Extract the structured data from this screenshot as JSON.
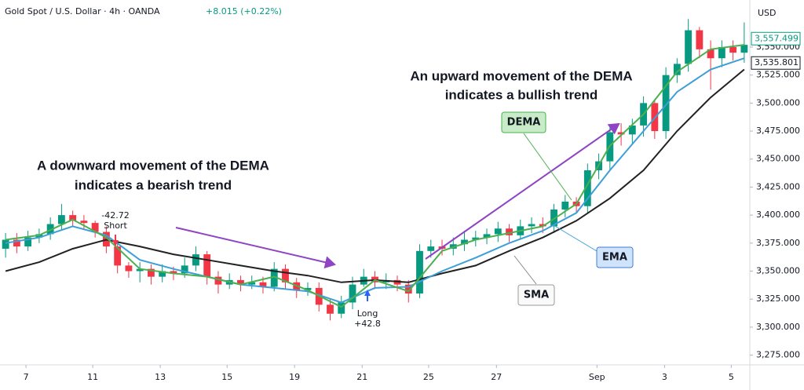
{
  "chart_data": {
    "type": "candlestick",
    "title": "Gold Spot / U.S. Dollar · 4h · OANDA",
    "change": "+8.015 (+0.22%)",
    "currency": "USD",
    "x": [
      0,
      1,
      2,
      3,
      4,
      5,
      6,
      7,
      8,
      9,
      10,
      11,
      12,
      13,
      14,
      15,
      16,
      17,
      18,
      19,
      20,
      21,
      22,
      23,
      24,
      25,
      26,
      27,
      28,
      29,
      30,
      31,
      32,
      33,
      34,
      35,
      36,
      37,
      38,
      39,
      40,
      41,
      42,
      43,
      44,
      45,
      46,
      47,
      48,
      49,
      50,
      51,
      52,
      53,
      54,
      55,
      56,
      57,
      58,
      59,
      60,
      61,
      62,
      63,
      64,
      65,
      66
    ],
    "open": [
      3370,
      3378,
      3372,
      3380,
      3383,
      3392,
      3400,
      3395,
      3393,
      3385,
      3372,
      3355,
      3350,
      3352,
      3345,
      3350,
      3348,
      3355,
      3365,
      3345,
      3338,
      3342,
      3338,
      3340,
      3336,
      3352,
      3340,
      3333,
      3335,
      3320,
      3312,
      3322,
      3338,
      3345,
      3340,
      3342,
      3338,
      3330,
      3368,
      3372,
      3370,
      3374,
      3378,
      3380,
      3383,
      3388,
      3382,
      3390,
      3392,
      3390,
      3405,
      3412,
      3408,
      3440,
      3448,
      3474,
      3472,
      3480,
      3500,
      3475,
      3525,
      3535,
      3565,
      3548,
      3540,
      3550,
      3545
    ],
    "high": [
      3384,
      3384,
      3386,
      3388,
      3398,
      3410,
      3404,
      3400,
      3395,
      3390,
      3375,
      3358,
      3358,
      3356,
      3356,
      3354,
      3362,
      3372,
      3368,
      3350,
      3348,
      3346,
      3346,
      3345,
      3358,
      3356,
      3344,
      3340,
      3340,
      3325,
      3328,
      3345,
      3352,
      3350,
      3348,
      3346,
      3342,
      3374,
      3378,
      3378,
      3380,
      3386,
      3386,
      3388,
      3394,
      3392,
      3396,
      3398,
      3398,
      3410,
      3418,
      3416,
      3446,
      3455,
      3480,
      3482,
      3486,
      3506,
      3502,
      3532,
      3540,
      3575,
      3568,
      3556,
      3556,
      3556,
      3572
    ],
    "low": [
      3362,
      3366,
      3368,
      3375,
      3378,
      3386,
      3390,
      3388,
      3380,
      3366,
      3348,
      3344,
      3340,
      3338,
      3340,
      3342,
      3344,
      3350,
      3338,
      3330,
      3334,
      3332,
      3334,
      3330,
      3332,
      3334,
      3326,
      3328,
      3314,
      3306,
      3308,
      3316,
      3336,
      3334,
      3334,
      3332,
      3322,
      3326,
      3362,
      3364,
      3364,
      3368,
      3372,
      3374,
      3376,
      3376,
      3378,
      3384,
      3384,
      3384,
      3398,
      3402,
      3402,
      3432,
      3440,
      3462,
      3464,
      3470,
      3468,
      3468,
      3518,
      3528,
      3540,
      3512,
      3532,
      3538,
      3536
    ],
    "close": [
      3378,
      3372,
      3380,
      3383,
      3392,
      3400,
      3395,
      3393,
      3385,
      3372,
      3355,
      3350,
      3352,
      3345,
      3350,
      3348,
      3355,
      3365,
      3345,
      3338,
      3342,
      3338,
      3340,
      3336,
      3352,
      3340,
      3333,
      3335,
      3320,
      3312,
      3322,
      3338,
      3345,
      3340,
      3342,
      3338,
      3330,
      3368,
      3372,
      3370,
      3374,
      3378,
      3380,
      3383,
      3388,
      3382,
      3390,
      3392,
      3390,
      3405,
      3412,
      3408,
      3440,
      3448,
      3474,
      3472,
      3480,
      3500,
      3475,
      3525,
      3535,
      3565,
      3548,
      3540,
      3550,
      3545,
      3552
    ],
    "up_color": "#089981",
    "down_color": "#f23645",
    "series": [
      {
        "name": "SMA",
        "color": "#222222",
        "x": [
          0,
          3,
          6,
          9,
          12,
          15,
          18,
          21,
          24,
          27,
          30,
          33,
          36,
          39,
          42,
          45,
          48,
          51,
          54,
          57,
          60,
          63,
          66
        ],
        "values": [
          3350,
          3358,
          3370,
          3378,
          3372,
          3365,
          3360,
          3355,
          3350,
          3346,
          3340,
          3342,
          3340,
          3348,
          3355,
          3368,
          3380,
          3395,
          3415,
          3440,
          3475,
          3505,
          3530
        ]
      },
      {
        "name": "EMA",
        "color": "#3d9fd8",
        "x": [
          0,
          3,
          6,
          9,
          12,
          15,
          18,
          21,
          24,
          27,
          30,
          33,
          36,
          39,
          42,
          45,
          48,
          51,
          54,
          57,
          60,
          63,
          66
        ],
        "values": [
          3375,
          3380,
          3390,
          3382,
          3360,
          3352,
          3345,
          3338,
          3335,
          3332,
          3322,
          3335,
          3336,
          3350,
          3362,
          3375,
          3386,
          3402,
          3440,
          3475,
          3510,
          3530,
          3540
        ]
      },
      {
        "name": "DEMA",
        "color": "#4caf50",
        "x": [
          0,
          3,
          6,
          9,
          12,
          15,
          18,
          21,
          24,
          27,
          30,
          33,
          36,
          39,
          42,
          45,
          48,
          51,
          54,
          57,
          60,
          63,
          66
        ],
        "values": [
          3378,
          3382,
          3396,
          3380,
          3352,
          3348,
          3345,
          3338,
          3345,
          3333,
          3318,
          3342,
          3332,
          3368,
          3378,
          3384,
          3390,
          3410,
          3462,
          3490,
          3528,
          3548,
          3552
        ]
      }
    ],
    "xlim": [
      -0.5,
      66.5
    ],
    "ylim": [
      3260,
      3585
    ],
    "xticks": [
      {
        "value": 1.82,
        "label": "7"
      },
      {
        "value": 7.79,
        "label": "11"
      },
      {
        "value": 13.82,
        "label": "13"
      },
      {
        "value": 19.79,
        "label": "15"
      },
      {
        "value": 25.82,
        "label": "19"
      },
      {
        "value": 31.86,
        "label": "21"
      },
      {
        "value": 37.8,
        "label": "25"
      },
      {
        "value": 43.86,
        "label": "27"
      },
      {
        "value": 52.84,
        "label": "Sep"
      },
      {
        "value": 58.88,
        "label": "3"
      },
      {
        "value": 64.84,
        "label": "5"
      }
    ],
    "yticks": [
      {
        "value": 3275,
        "label": "3,275.000"
      },
      {
        "value": 3300,
        "label": "3,300.000"
      },
      {
        "value": 3325,
        "label": "3,325.000"
      },
      {
        "value": 3350,
        "label": "3,350.000"
      },
      {
        "value": 3375,
        "label": "3,375.000"
      },
      {
        "value": 3400,
        "label": "3,400.000"
      },
      {
        "value": 3425,
        "label": "3,425.000"
      },
      {
        "value": 3450,
        "label": "3,450.000"
      },
      {
        "value": 3475,
        "label": "3,475.000"
      },
      {
        "value": 3500,
        "label": "3,500.000"
      },
      {
        "value": 3525,
        "label": "3,525.000"
      },
      {
        "value": 3550,
        "label": "3,550.000"
      }
    ],
    "grid": false,
    "price_labels": [
      {
        "value": 3557.499,
        "label": "3,557.499",
        "color": "#089981"
      },
      {
        "value": 3535.801,
        "label": "3,535.801",
        "color": "#131722"
      }
    ],
    "signals": [
      {
        "label": "Short",
        "value": "-42.72"
      },
      {
        "label": "Long",
        "value": "+42.8"
      }
    ],
    "annotations": {
      "bullish": [
        "An upward movement of the DEMA",
        "indicates a bullish trend"
      ],
      "bearish": [
        "A downward movement of the DEMA",
        "indicates a bearish trend"
      ]
    }
  }
}
